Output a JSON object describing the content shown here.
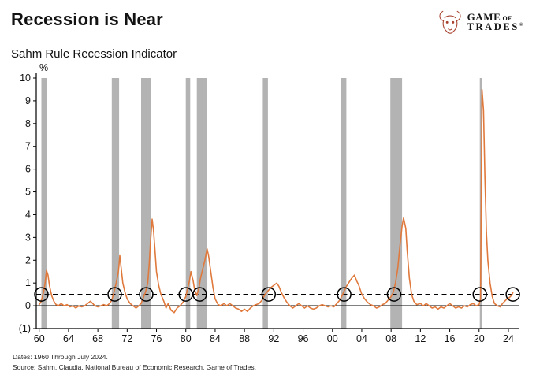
{
  "header": {
    "title": "Recession is Near",
    "subtitle": "Sahm Rule Recession Indicator"
  },
  "logo": {
    "word1": "GAME",
    "word2": "OF",
    "word3": "TRADES",
    "reg": "®"
  },
  "footer": {
    "dates": "Dates: 1960 Through July 2024.",
    "source": "Source: Sahm, Claudia, National Bureau of Economic Research, Game of Trades."
  },
  "colors": {
    "axis": "#000000",
    "line": "#E0793C",
    "recession_band": "#B3B3B3",
    "logo_bull": "#A8432F"
  },
  "chart_data": {
    "type": "line",
    "title": "Sahm Rule Recession Indicator",
    "y_unit": "%",
    "ylim": [
      -1,
      10
    ],
    "x_domain": [
      1959.6,
      2025.4
    ],
    "grid": false,
    "legend": false,
    "threshold": 0.5,
    "zero_line": 0,
    "yticks": [
      {
        "value": 10,
        "label": "10"
      },
      {
        "value": 9,
        "label": "9"
      },
      {
        "value": 8,
        "label": "8"
      },
      {
        "value": 7,
        "label": "7"
      },
      {
        "value": 6,
        "label": "6"
      },
      {
        "value": 5,
        "label": "5"
      },
      {
        "value": 4,
        "label": "4"
      },
      {
        "value": 3,
        "label": "3"
      },
      {
        "value": 2,
        "label": "2"
      },
      {
        "value": 1,
        "label": "1"
      },
      {
        "value": 0,
        "label": "0"
      },
      {
        "value": -1,
        "label": "(1)"
      }
    ],
    "xticks": [
      {
        "value": 1960,
        "label": "60"
      },
      {
        "value": 1964,
        "label": "64"
      },
      {
        "value": 1968,
        "label": "68"
      },
      {
        "value": 1972,
        "label": "72"
      },
      {
        "value": 1976,
        "label": "76"
      },
      {
        "value": 1980,
        "label": "80"
      },
      {
        "value": 1984,
        "label": "84"
      },
      {
        "value": 1988,
        "label": "88"
      },
      {
        "value": 1992,
        "label": "92"
      },
      {
        "value": 1996,
        "label": "96"
      },
      {
        "value": 2000,
        "label": "00"
      },
      {
        "value": 2004,
        "label": "04"
      },
      {
        "value": 2008,
        "label": "08"
      },
      {
        "value": 2012,
        "label": "12"
      },
      {
        "value": 2016,
        "label": "16"
      },
      {
        "value": 2020,
        "label": "20"
      },
      {
        "value": 2024,
        "label": "24"
      }
    ],
    "recession_bands": [
      [
        1960.3,
        1961.1
      ],
      [
        1969.9,
        1970.9
      ],
      [
        1973.9,
        1975.2
      ],
      [
        1980.0,
        1980.6
      ],
      [
        1981.5,
        1982.9
      ],
      [
        1990.5,
        1991.2
      ],
      [
        2001.2,
        2001.9
      ],
      [
        2007.9,
        2009.5
      ],
      [
        2020.1,
        2020.45
      ]
    ],
    "threshold_crossings": [
      1960.3,
      1970.3,
      1974.6,
      1980.0,
      1981.9,
      1991.3,
      2001.6,
      2008.4,
      2020.1,
      2024.6
    ],
    "series": [
      {
        "name": "Sahm Rule Recession Indicator",
        "color": "#E0793C",
        "points": [
          [
            1960.0,
            0.05
          ],
          [
            1960.2,
            0.15
          ],
          [
            1960.4,
            0.35
          ],
          [
            1960.6,
            0.6
          ],
          [
            1960.8,
            1.0
          ],
          [
            1961.0,
            1.55
          ],
          [
            1961.2,
            1.35
          ],
          [
            1961.4,
            0.9
          ],
          [
            1961.7,
            0.45
          ],
          [
            1962.0,
            0.2
          ],
          [
            1962.3,
            0.05
          ],
          [
            1962.6,
            0.0
          ],
          [
            1963.0,
            0.1
          ],
          [
            1963.4,
            0.0
          ],
          [
            1963.8,
            0.05
          ],
          [
            1964.2,
            -0.05
          ],
          [
            1964.6,
            0.0
          ],
          [
            1965.0,
            -0.1
          ],
          [
            1965.4,
            0.0
          ],
          [
            1965.8,
            -0.05
          ],
          [
            1966.2,
            0.0
          ],
          [
            1966.6,
            0.1
          ],
          [
            1967.0,
            0.2
          ],
          [
            1967.3,
            0.1
          ],
          [
            1967.6,
            0.0
          ],
          [
            1968.0,
            -0.05
          ],
          [
            1968.4,
            0.0
          ],
          [
            1968.8,
            0.05
          ],
          [
            1969.2,
            0.0
          ],
          [
            1969.6,
            0.1
          ],
          [
            1969.9,
            0.25
          ],
          [
            1970.2,
            0.6
          ],
          [
            1970.5,
            1.0
          ],
          [
            1970.8,
            1.5
          ],
          [
            1971.0,
            2.2
          ],
          [
            1971.2,
            1.6
          ],
          [
            1971.4,
            1.0
          ],
          [
            1971.7,
            0.6
          ],
          [
            1972.0,
            0.3
          ],
          [
            1972.4,
            0.1
          ],
          [
            1972.8,
            0.0
          ],
          [
            1973.2,
            -0.1
          ],
          [
            1973.6,
            0.0
          ],
          [
            1973.9,
            0.1
          ],
          [
            1974.2,
            0.35
          ],
          [
            1974.5,
            0.6
          ],
          [
            1974.8,
            1.0
          ],
          [
            1975.0,
            1.8
          ],
          [
            1975.2,
            2.9
          ],
          [
            1975.4,
            3.8
          ],
          [
            1975.6,
            3.3
          ],
          [
            1975.8,
            2.4
          ],
          [
            1976.0,
            1.5
          ],
          [
            1976.3,
            0.9
          ],
          [
            1976.6,
            0.5
          ],
          [
            1977.0,
            0.2
          ],
          [
            1977.3,
            -0.1
          ],
          [
            1977.6,
            0.1
          ],
          [
            1978.0,
            -0.2
          ],
          [
            1978.4,
            -0.3
          ],
          [
            1978.8,
            -0.1
          ],
          [
            1979.2,
            0.0
          ],
          [
            1979.6,
            0.15
          ],
          [
            1980.0,
            0.4
          ],
          [
            1980.2,
            0.7
          ],
          [
            1980.5,
            1.1
          ],
          [
            1980.7,
            1.5
          ],
          [
            1981.0,
            1.1
          ],
          [
            1981.2,
            0.7
          ],
          [
            1981.5,
            0.45
          ],
          [
            1981.8,
            0.8
          ],
          [
            1982.0,
            1.2
          ],
          [
            1982.3,
            1.6
          ],
          [
            1982.6,
            2.0
          ],
          [
            1982.9,
            2.5
          ],
          [
            1983.1,
            2.2
          ],
          [
            1983.4,
            1.5
          ],
          [
            1983.7,
            0.8
          ],
          [
            1984.0,
            0.3
          ],
          [
            1984.4,
            0.05
          ],
          [
            1984.8,
            0.0
          ],
          [
            1985.2,
            0.1
          ],
          [
            1985.6,
            0.0
          ],
          [
            1986.0,
            0.1
          ],
          [
            1986.4,
            0.0
          ],
          [
            1986.8,
            -0.1
          ],
          [
            1987.2,
            -0.15
          ],
          [
            1987.6,
            -0.25
          ],
          [
            1988.0,
            -0.15
          ],
          [
            1988.4,
            -0.25
          ],
          [
            1988.8,
            -0.1
          ],
          [
            1989.2,
            0.0
          ],
          [
            1989.6,
            0.05
          ],
          [
            1990.0,
            0.1
          ],
          [
            1990.4,
            0.25
          ],
          [
            1990.8,
            0.5
          ],
          [
            1991.2,
            0.65
          ],
          [
            1991.6,
            0.8
          ],
          [
            1992.0,
            0.9
          ],
          [
            1992.4,
            1.0
          ],
          [
            1992.7,
            0.85
          ],
          [
            1993.0,
            0.6
          ],
          [
            1993.4,
            0.35
          ],
          [
            1993.8,
            0.15
          ],
          [
            1994.2,
            0.0
          ],
          [
            1994.6,
            -0.1
          ],
          [
            1995.0,
            0.0
          ],
          [
            1995.4,
            0.1
          ],
          [
            1995.8,
            0.0
          ],
          [
            1996.2,
            -0.1
          ],
          [
            1996.6,
            0.0
          ],
          [
            1997.0,
            -0.1
          ],
          [
            1997.4,
            -0.15
          ],
          [
            1997.8,
            -0.1
          ],
          [
            1998.2,
            0.0
          ],
          [
            1998.6,
            0.05
          ],
          [
            1999.0,
            0.0
          ],
          [
            1999.4,
            -0.05
          ],
          [
            1999.8,
            0.0
          ],
          [
            2000.2,
            -0.05
          ],
          [
            2000.6,
            0.1
          ],
          [
            2001.0,
            0.25
          ],
          [
            2001.4,
            0.5
          ],
          [
            2001.8,
            0.8
          ],
          [
            2002.2,
            1.0
          ],
          [
            2002.6,
            1.2
          ],
          [
            2003.0,
            1.35
          ],
          [
            2003.3,
            1.1
          ],
          [
            2003.6,
            0.9
          ],
          [
            2004.0,
            0.5
          ],
          [
            2004.4,
            0.3
          ],
          [
            2004.8,
            0.15
          ],
          [
            2005.2,
            0.05
          ],
          [
            2005.6,
            0.0
          ],
          [
            2006.0,
            -0.1
          ],
          [
            2006.4,
            -0.05
          ],
          [
            2006.8,
            0.05
          ],
          [
            2007.2,
            0.1
          ],
          [
            2007.6,
            0.25
          ],
          [
            2008.0,
            0.4
          ],
          [
            2008.3,
            0.6
          ],
          [
            2008.6,
            1.0
          ],
          [
            2008.9,
            1.6
          ],
          [
            2009.2,
            2.6
          ],
          [
            2009.5,
            3.5
          ],
          [
            2009.7,
            3.85
          ],
          [
            2010.0,
            3.4
          ],
          [
            2010.2,
            2.4
          ],
          [
            2010.5,
            1.2
          ],
          [
            2010.8,
            0.5
          ],
          [
            2011.1,
            0.2
          ],
          [
            2011.5,
            0.05
          ],
          [
            2012.0,
            0.1
          ],
          [
            2012.4,
            0.0
          ],
          [
            2012.8,
            0.1
          ],
          [
            2013.2,
            0.0
          ],
          [
            2013.6,
            -0.1
          ],
          [
            2014.0,
            -0.05
          ],
          [
            2014.4,
            -0.15
          ],
          [
            2014.8,
            -0.05
          ],
          [
            2015.2,
            -0.1
          ],
          [
            2015.6,
            0.0
          ],
          [
            2016.0,
            0.1
          ],
          [
            2016.4,
            0.0
          ],
          [
            2016.8,
            -0.1
          ],
          [
            2017.2,
            -0.05
          ],
          [
            2017.6,
            -0.1
          ],
          [
            2018.0,
            0.0
          ],
          [
            2018.4,
            -0.05
          ],
          [
            2018.8,
            0.05
          ],
          [
            2019.2,
            0.1
          ],
          [
            2019.6,
            0.0
          ],
          [
            2020.0,
            0.05
          ],
          [
            2020.2,
            0.3
          ],
          [
            2020.4,
            9.5
          ],
          [
            2020.6,
            8.6
          ],
          [
            2020.8,
            5.6
          ],
          [
            2021.0,
            3.2
          ],
          [
            2021.2,
            2.0
          ],
          [
            2021.5,
            1.0
          ],
          [
            2021.8,
            0.4
          ],
          [
            2022.1,
            0.1
          ],
          [
            2022.5,
            0.0
          ],
          [
            2022.9,
            -0.05
          ],
          [
            2023.2,
            0.1
          ],
          [
            2023.5,
            0.2
          ],
          [
            2023.8,
            0.3
          ],
          [
            2024.1,
            0.35
          ],
          [
            2024.4,
            0.45
          ],
          [
            2024.6,
            0.57
          ]
        ]
      }
    ]
  }
}
